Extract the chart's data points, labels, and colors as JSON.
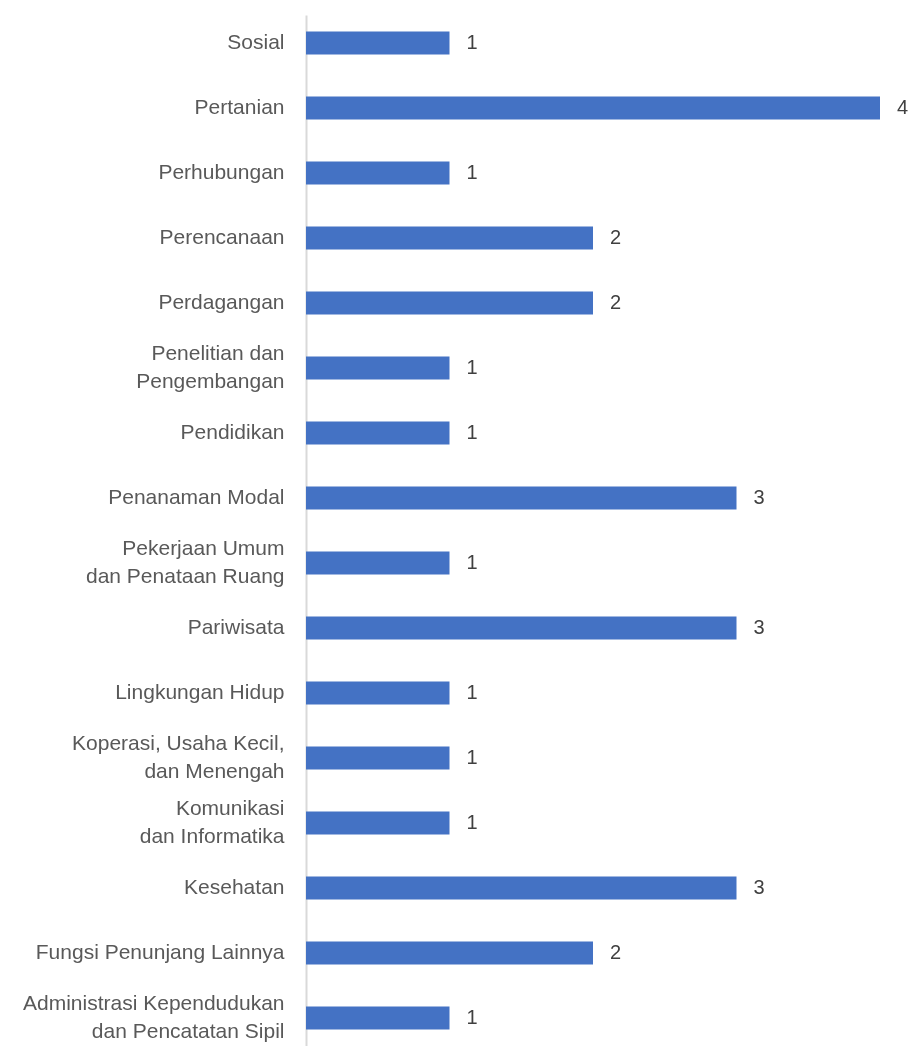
{
  "chart_data": {
    "type": "bar",
    "orientation": "horizontal",
    "categories": [
      "Sosial",
      "Pertanian",
      "Perhubungan",
      "Perencanaan",
      "Perdagangan",
      "Penelitian dan\nPengembangan",
      "Pendidikan",
      "Penanaman Modal",
      "Pekerjaan Umum\ndan Penataan Ruang",
      "Pariwisata",
      "Lingkungan Hidup",
      "Koperasi, Usaha Kecil,\ndan Menengah",
      "Komunikasi\ndan Informatika",
      "Kesehatan",
      "Fungsi Penunjang Lainnya",
      "Administrasi Kependudukan\ndan Pencatatan Sipil"
    ],
    "values": [
      1,
      4,
      1,
      2,
      2,
      1,
      1,
      3,
      1,
      3,
      1,
      1,
      1,
      3,
      2,
      1
    ],
    "color": "#4472c4",
    "data_labels": true
  }
}
